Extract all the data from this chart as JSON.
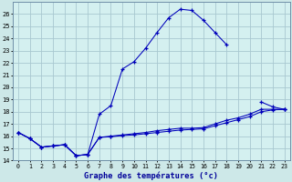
{
  "bg_color": "#cde8e8",
  "plot_bg_color": "#d4f0f0",
  "grid_color": "#a8c8d0",
  "line_color": "#0000bb",
  "xlabel": "Graphe des températures (°c)",
  "hours": [
    0,
    1,
    2,
    3,
    4,
    5,
    6,
    7,
    8,
    9,
    10,
    11,
    12,
    13,
    14,
    15,
    16,
    17,
    18,
    19,
    20,
    21,
    22,
    23
  ],
  "series1": [
    16.3,
    15.8,
    15.1,
    15.2,
    15.3,
    14.4,
    14.5,
    17.8,
    18.5,
    21.5,
    22.1,
    23.2,
    24.5,
    25.7,
    26.4,
    26.3,
    25.5,
    24.5,
    23.5,
    null,
    null,
    18.8,
    18.4,
    18.2
  ],
  "series2": [
    16.3,
    15.8,
    15.1,
    15.2,
    15.3,
    14.4,
    14.5,
    15.9,
    16.0,
    16.1,
    16.2,
    16.3,
    16.45,
    16.55,
    16.65,
    16.65,
    16.7,
    17.0,
    17.3,
    17.5,
    17.8,
    18.2,
    18.2,
    18.2
  ],
  "series3": [
    16.3,
    15.8,
    15.1,
    15.2,
    15.3,
    14.4,
    14.5,
    15.9,
    15.95,
    16.05,
    16.1,
    16.2,
    16.3,
    16.4,
    16.5,
    16.55,
    16.6,
    16.85,
    17.1,
    17.35,
    17.6,
    18.0,
    18.15,
    18.2
  ],
  "ylim": [
    14.0,
    27.0
  ],
  "ytick_min": 14,
  "ytick_max": 26,
  "xlim": [
    -0.5,
    23.5
  ]
}
